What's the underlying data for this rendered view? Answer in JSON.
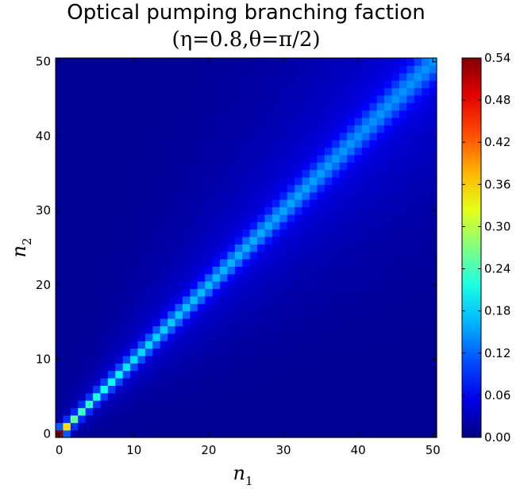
{
  "chart_data": {
    "type": "heatmap",
    "title": "Optical pumping branching faction",
    "subtitle": "(η=0.8,θ=π/2)",
    "xlabel": {
      "base": "n",
      "sub": "1"
    },
    "ylabel": {
      "base": "n",
      "sub": "2"
    },
    "xlim": [
      0,
      50
    ],
    "ylim": [
      0,
      50
    ],
    "x_ticks": [
      "0",
      "10",
      "20",
      "30",
      "40",
      "50"
    ],
    "y_ticks": [
      "0",
      "10",
      "20",
      "30",
      "40",
      "50"
    ],
    "colormap": "jet",
    "colorbar": {
      "min": 0.0,
      "max": 0.54,
      "ticks": [
        "0.00",
        "0.06",
        "0.12",
        "0.18",
        "0.24",
        "0.30",
        "0.36",
        "0.42",
        "0.48",
        "0.54"
      ]
    },
    "diagonal_profile": [
      {
        "n": 0,
        "value": 0.54
      },
      {
        "n": 1,
        "value": 0.3
      },
      {
        "n": 2,
        "value": 0.2
      },
      {
        "n": 3,
        "value": 0.18
      },
      {
        "n": 5,
        "value": 0.16
      },
      {
        "n": 10,
        "value": 0.13
      },
      {
        "n": 20,
        "value": 0.11
      },
      {
        "n": 30,
        "value": 0.1
      },
      {
        "n": 40,
        "value": 0.09
      },
      {
        "n": 50,
        "value": 0.09
      }
    ],
    "background_value": 0.01
  }
}
